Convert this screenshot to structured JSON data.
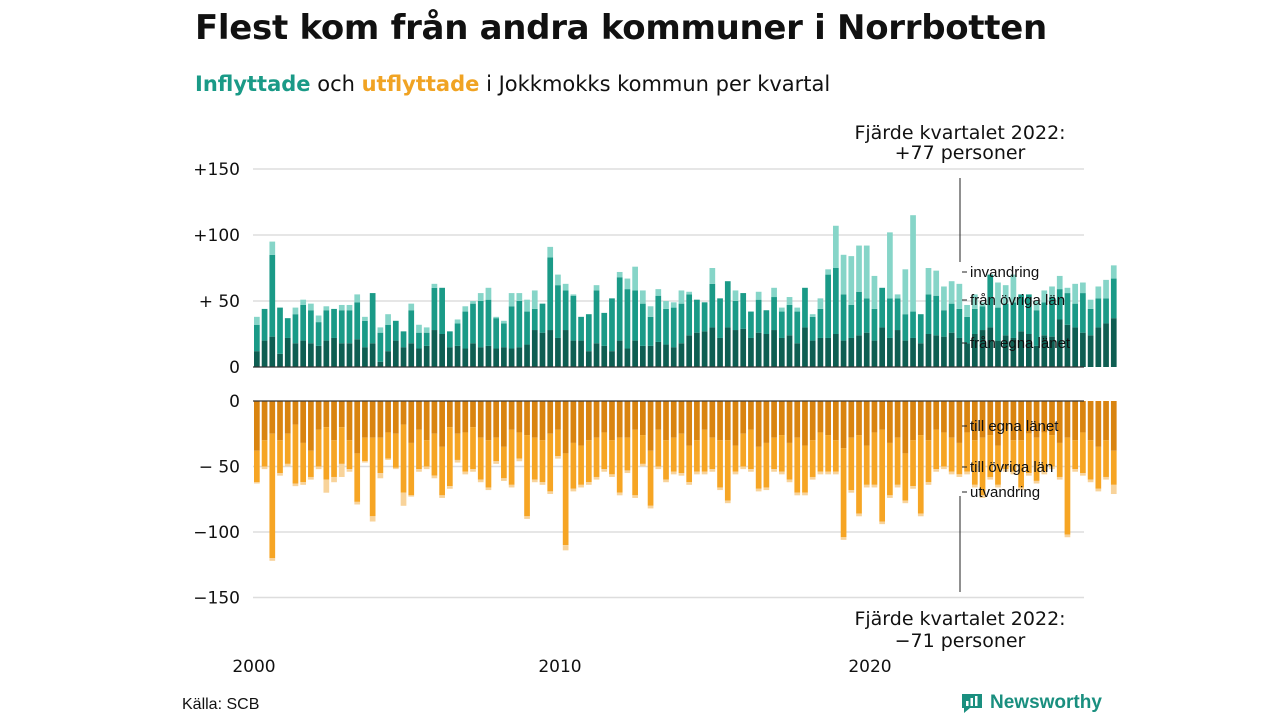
{
  "title": "Flest kom från andra kommuner i Norrbotten",
  "subtitle": {
    "in": "Inflyttade",
    "and": " och ",
    "out": "utflyttade",
    "rest": " i Jokkmokks kommun per kvartal"
  },
  "source": "Källa: SCB",
  "brand": "Newsworthy",
  "colors": {
    "in_egna": "#0e5e52",
    "in_ovriga": "#1a9a87",
    "in_invandring": "#86d5c8",
    "out_egna": "#d98410",
    "out_ovriga": "#f6a524",
    "out_utvandring": "#f8d39a",
    "grid": "#dddddd",
    "axis": "#333333"
  },
  "chart_data": {
    "type": "bar",
    "x_unit": "quarter",
    "x_labels": [
      "2000",
      "2010",
      "2020"
    ],
    "upper": {
      "y_ticks": [
        "+150",
        "+100",
        "+ 50",
        "0"
      ],
      "ylim": [
        0,
        150
      ],
      "series": [
        {
          "name": "från egna länet",
          "values": [
            12,
            20,
            23,
            10,
            22,
            18,
            20,
            18,
            16,
            20,
            22,
            18,
            18,
            21,
            15,
            18,
            4,
            12,
            20,
            15,
            18,
            14,
            16,
            28,
            25,
            15,
            16,
            14,
            18,
            15,
            16,
            14,
            15,
            14,
            15,
            17,
            28,
            26,
            28,
            22,
            28,
            20,
            20,
            12,
            18,
            16,
            12,
            20,
            14,
            20,
            16,
            16,
            19,
            17,
            15,
            18,
            24,
            26,
            27,
            30,
            22,
            30,
            28,
            29,
            22,
            26,
            25,
            28,
            22,
            24,
            18,
            30,
            20,
            22,
            22,
            25,
            20,
            22,
            24,
            26,
            20,
            30,
            22,
            28,
            20,
            22,
            18,
            25,
            24,
            23,
            26,
            22,
            18,
            25,
            28,
            30,
            20,
            24,
            22,
            27,
            25,
            16,
            24,
            23,
            36,
            32,
            30,
            26,
            24,
            30,
            33,
            37
          ]
        },
        {
          "name": "från övriga län",
          "values": [
            20,
            24,
            62,
            35,
            15,
            22,
            27,
            25,
            18,
            23,
            22,
            25,
            25,
            28,
            20,
            38,
            22,
            20,
            15,
            12,
            25,
            12,
            10,
            32,
            35,
            12,
            17,
            28,
            30,
            35,
            35,
            23,
            18,
            32,
            35,
            25,
            16,
            22,
            55,
            40,
            30,
            34,
            18,
            28,
            40,
            25,
            40,
            48,
            45,
            38,
            32,
            22,
            35,
            27,
            30,
            30,
            31,
            25,
            22,
            33,
            30,
            35,
            22,
            27,
            20,
            25,
            18,
            25,
            20,
            23,
            24,
            30,
            18,
            22,
            48,
            50,
            35,
            25,
            33,
            26,
            24,
            30,
            30,
            24,
            20,
            20,
            22,
            30,
            30,
            20,
            22,
            22,
            20,
            19,
            18,
            40,
            25,
            24,
            27,
            28,
            30,
            27,
            25,
            30,
            23,
            24,
            18,
            30,
            20,
            22,
            19,
            30
          ]
        },
        {
          "name": "invandring",
          "values": [
            6,
            0,
            10,
            0,
            0,
            5,
            4,
            5,
            5,
            3,
            0,
            4,
            4,
            6,
            3,
            0,
            4,
            8,
            0,
            0,
            5,
            6,
            4,
            3,
            0,
            0,
            3,
            4,
            2,
            6,
            9,
            1,
            2,
            10,
            6,
            9,
            14,
            0,
            8,
            8,
            5,
            1,
            0,
            0,
            4,
            0,
            0,
            4,
            8,
            18,
            10,
            8,
            5,
            6,
            4,
            10,
            2,
            0,
            0,
            12,
            0,
            0,
            8,
            0,
            0,
            6,
            0,
            7,
            3,
            6,
            3,
            0,
            2,
            8,
            4,
            32,
            30,
            37,
            35,
            40,
            25,
            0,
            50,
            3,
            34,
            73,
            0,
            20,
            19,
            18,
            17,
            19,
            9,
            11,
            3,
            0,
            19,
            14,
            21,
            0,
            0,
            7,
            9,
            8,
            10,
            4,
            15,
            8,
            7,
            9,
            14,
            10
          ]
        }
      ]
    },
    "lower": {
      "y_ticks": [
        "0",
        "− 50",
        "−100",
        "−150"
      ],
      "ylim": [
        -150,
        0
      ],
      "series": [
        {
          "name": "till egna länet",
          "values": [
            -38,
            -30,
            -25,
            -30,
            -25,
            -18,
            -32,
            -38,
            -22,
            -20,
            -30,
            -20,
            -30,
            -40,
            -28,
            -28,
            -28,
            -24,
            -25,
            -18,
            -32,
            -22,
            -30,
            -25,
            -35,
            -20,
            -25,
            -24,
            -20,
            -28,
            -30,
            -28,
            -35,
            -22,
            -24,
            -26,
            -28,
            -30,
            -25,
            -22,
            -40,
            -32,
            -34,
            -30,
            -28,
            -24,
            -30,
            -28,
            -28,
            -22,
            -26,
            -38,
            -22,
            -30,
            -28,
            -25,
            -34,
            -30,
            -22,
            -28,
            -30,
            -30,
            -34,
            -25,
            -22,
            -35,
            -32,
            -28,
            -26,
            -32,
            -28,
            -34,
            -30,
            -24,
            -26,
            -30,
            -36,
            -28,
            -26,
            -34,
            -24,
            -22,
            -32,
            -28,
            -40,
            -30,
            -26,
            -30,
            -22,
            -24,
            -28,
            -32,
            -24,
            -30,
            -28,
            -26,
            -34,
            -22,
            -30,
            -30,
            -25,
            -28,
            -24,
            -26,
            -32,
            -28,
            -30,
            -24,
            -30,
            -35,
            -30,
            -38
          ]
        },
        {
          "name": "till övriga län",
          "values": [
            -24,
            -20,
            -95,
            -25,
            -23,
            -45,
            -30,
            -20,
            -28,
            -40,
            -28,
            -28,
            -22,
            -37,
            -18,
            -60,
            -27,
            -20,
            -26,
            -52,
            -40,
            -30,
            -20,
            -32,
            -37,
            -45,
            -20,
            -30,
            -32,
            -32,
            -36,
            -18,
            -24,
            -42,
            -20,
            -62,
            -32,
            -32,
            -44,
            -20,
            -70,
            -35,
            -30,
            -32,
            -30,
            -28,
            -26,
            -42,
            -25,
            -50,
            -22,
            -42,
            -28,
            -30,
            -26,
            -30,
            -28,
            -24,
            -32,
            -24,
            -36,
            -46,
            -20,
            -25,
            -30,
            -32,
            -34,
            -24,
            -28,
            -28,
            -42,
            -36,
            -28,
            -30,
            -28,
            -24,
            -68,
            -40,
            -60,
            -30,
            -40,
            -70,
            -40,
            -36,
            -36,
            -35,
            -60,
            -32,
            -30,
            -26,
            -26,
            -24,
            -30,
            -34,
            -44,
            -32,
            -30,
            -30,
            -24,
            -36,
            -30,
            -33,
            -30,
            -24,
            -26,
            -74,
            -22,
            -31,
            -30,
            -32,
            -28,
            -26
          ]
        },
        {
          "name": "utvandring",
          "values": [
            -1,
            -2,
            -2,
            -2,
            -2,
            -2,
            -2,
            -2,
            -2,
            -10,
            -4,
            -10,
            -2,
            -2,
            -1,
            -4,
            -4,
            -1,
            -1,
            -10,
            -1,
            -2,
            -2,
            -2,
            -2,
            -2,
            -2,
            -2,
            -2,
            -2,
            -2,
            -2,
            -2,
            -2,
            -2,
            -2,
            -2,
            -2,
            -2,
            -2,
            -4,
            -2,
            -2,
            -2,
            -2,
            -2,
            -2,
            -2,
            -2,
            -2,
            -2,
            -2,
            -2,
            -2,
            -2,
            -2,
            -2,
            -2,
            -2,
            -2,
            -2,
            -2,
            -2,
            -2,
            -2,
            -2,
            -2,
            -2,
            -2,
            -2,
            -2,
            -2,
            -2,
            -2,
            -2,
            -2,
            -2,
            -2,
            -2,
            -2,
            -2,
            -2,
            -2,
            -2,
            -2,
            -2,
            -2,
            -2,
            -2,
            -2,
            -2,
            -2,
            -2,
            -2,
            -2,
            -2,
            -2,
            -2,
            -2,
            -2,
            -2,
            -2,
            -2,
            -2,
            -2,
            -2,
            -2,
            -2,
            -2,
            -2,
            -2,
            -7
          ]
        }
      ]
    },
    "annotations": {
      "top": [
        "Fjärde kvartalet 2022:",
        "+77 personer"
      ],
      "bottom": [
        "Fjärde kvartalet 2022:",
        "−71 personer"
      ]
    }
  }
}
